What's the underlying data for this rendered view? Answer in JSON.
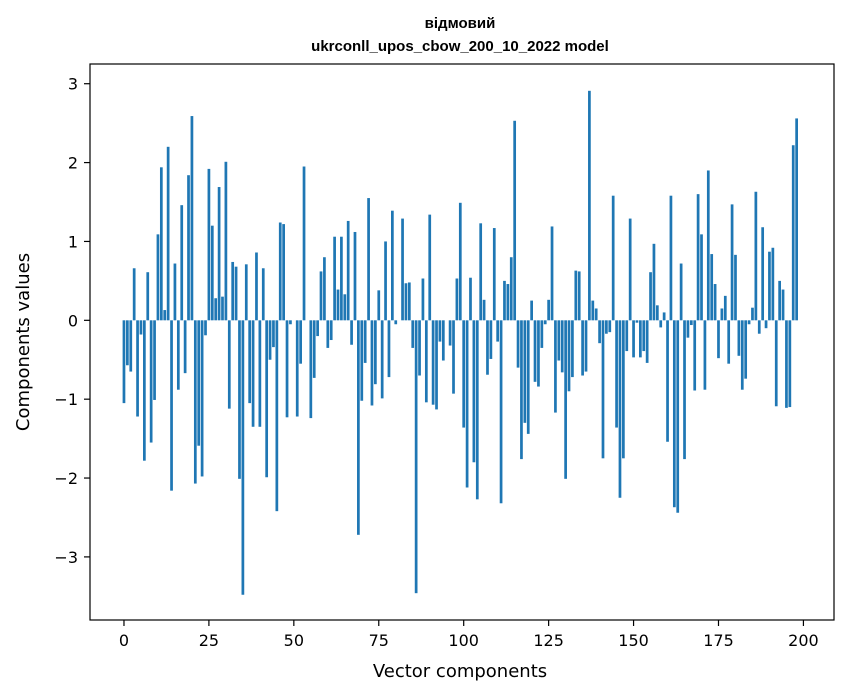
{
  "chart_data": {
    "type": "bar",
    "title_line1": "відмовий",
    "title_line2": "ukrconll_upos_cbow_200_10_2022 model",
    "xlabel": "Vector components",
    "ylabel": "Components values",
    "xlim": [
      -10,
      209
    ],
    "ylim": [
      -3.8,
      3.25
    ],
    "xticks": [
      0,
      25,
      50,
      75,
      100,
      125,
      150,
      175,
      200
    ],
    "yticks": [
      -3,
      -2,
      -1,
      0,
      1,
      2,
      3
    ],
    "ytick_labels": [
      "−3",
      "−2",
      "−1",
      "0",
      "1",
      "2",
      "3"
    ],
    "grid": false,
    "bar_color": "#1f77b4",
    "values": [
      -1.05,
      -0.57,
      -0.65,
      0.66,
      -1.22,
      -0.18,
      -1.78,
      0.61,
      -1.55,
      -1.01,
      1.09,
      1.94,
      0.13,
      2.2,
      -2.16,
      0.72,
      -0.88,
      1.46,
      -0.67,
      1.84,
      2.59,
      -2.07,
      -1.59,
      -1.98,
      -0.19,
      1.92,
      1.2,
      0.28,
      1.69,
      0.3,
      2.01,
      -1.12,
      0.74,
      0.68,
      -2.01,
      -3.48,
      0.71,
      -1.05,
      -1.35,
      0.86,
      -1.35,
      0.66,
      -1.99,
      -0.5,
      -0.34,
      -2.42,
      1.24,
      1.22,
      -1.23,
      -0.05,
      0.0,
      -1.22,
      -0.55,
      1.95,
      0.0,
      -1.24,
      -0.73,
      -0.2,
      0.62,
      0.8,
      -0.35,
      -0.25,
      1.06,
      0.39,
      1.06,
      0.33,
      1.26,
      -0.31,
      1.12,
      -2.72,
      -1.02,
      -0.54,
      1.55,
      -1.08,
      -0.81,
      0.38,
      -0.99,
      1.0,
      -0.72,
      1.39,
      -0.05,
      0.0,
      1.29,
      0.47,
      0.48,
      -0.35,
      -3.46,
      -0.7,
      0.53,
      -1.04,
      1.34,
      -1.07,
      -1.13,
      -0.27,
      -0.51,
      0.0,
      -0.32,
      -0.93,
      0.53,
      1.49,
      -1.36,
      -2.12,
      0.54,
      -1.8,
      -2.27,
      1.23,
      0.26,
      -0.69,
      -0.49,
      1.17,
      -0.27,
      -2.32,
      0.5,
      0.46,
      0.8,
      2.53,
      -0.6,
      -1.76,
      -1.3,
      -1.44,
      0.25,
      -0.78,
      -0.84,
      -0.35,
      -0.05,
      0.26,
      1.19,
      -1.17,
      -0.51,
      -0.66,
      -2.01,
      -0.9,
      -0.72,
      0.63,
      0.62,
      -0.7,
      -0.65,
      2.91,
      0.25,
      0.15,
      -0.29,
      -1.75,
      -0.17,
      -0.15,
      1.58,
      -1.36,
      -2.25,
      -1.75,
      -0.39,
      1.29,
      -0.47,
      -0.03,
      -0.47,
      -0.39,
      -0.54,
      0.61,
      0.97,
      0.19,
      -0.09,
      0.1,
      -1.54,
      1.58,
      -2.37,
      -2.44,
      0.72,
      -1.76,
      -0.22,
      -0.06,
      -0.89,
      1.6,
      1.09,
      -0.88,
      1.9,
      0.84,
      0.46,
      -0.48,
      0.15,
      0.31,
      -0.55,
      1.47,
      0.83,
      -0.45,
      -0.88,
      -0.74,
      -0.05,
      0.16,
      1.63,
      -0.17,
      1.18,
      -0.1,
      0.87,
      0.92,
      -1.09,
      0.5,
      0.39,
      -1.11,
      -1.1,
      2.22,
      2.56
    ]
  }
}
